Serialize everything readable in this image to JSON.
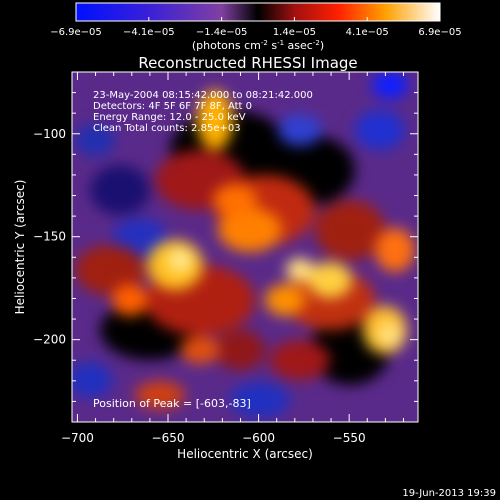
{
  "colorbar": {
    "ticks": [
      "-6.9e-05",
      "-4.1e-05",
      "-1.4e-05",
      "1.4e-05",
      "4.1e-05",
      "6.9e-05"
    ],
    "unit_main": "(photons cm",
    "unit_exp1": "-2",
    "unit_mid": " s",
    "unit_exp2": "-1",
    "unit_end": " asec",
    "unit_exp3": "-2",
    "unit_close": ")",
    "range": [
      -6.9e-05,
      6.9e-05
    ]
  },
  "chart_data": {
    "type": "heatmap",
    "title": "Reconstructed RHESSI Image",
    "xlabel": "Heliocentric X (arcsec)",
    "ylabel": "Heliocentric Y (arcsec)",
    "xlim": [
      -703,
      -512
    ],
    "ylim": [
      -240,
      -70
    ],
    "xticks": [
      -700,
      -650,
      -600,
      -550
    ],
    "xtick_labels": [
      "−700",
      "−650",
      "−600",
      "−550"
    ],
    "yticks": [
      -100,
      -150,
      -200
    ],
    "ytick_labels": [
      "−100",
      "−150",
      "−200"
    ],
    "info_lines": [
      "23-May-2004 08:15:42.000 to 08:21:42.000",
      "Detectors: 4F 5F 6F 7F 8F, Att 0",
      "Energy Range: 12.0 - 25.0 keV",
      "Clean     Total counts: 2.85e+03"
    ],
    "peak_label": "Position of Peak = [-603,-83]",
    "peak": [
      -603,
      -83
    ]
  },
  "footer": {
    "timestamp": "19-Jun-2013 19:39"
  }
}
